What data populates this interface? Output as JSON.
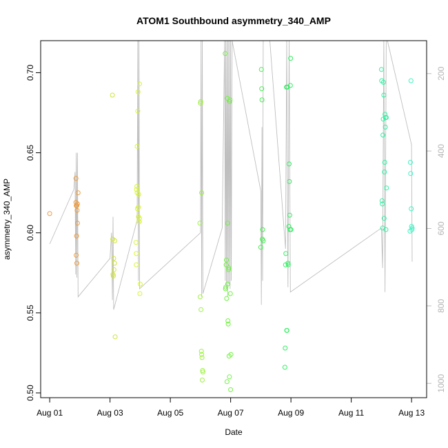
{
  "chart_data": {
    "type": "scatter",
    "title": "ATOM1 Southbound asymmetry_340_AMP",
    "xlabel": "Date",
    "ylabel": "asymmetry_340_AMP",
    "x_tick_labels": [
      "Aug 01",
      "Aug 03",
      "Aug 05",
      "Aug 07",
      "Aug 09",
      "Aug 11",
      "Aug 13"
    ],
    "x_tick_days": [
      1,
      3,
      5,
      7,
      9,
      11,
      13
    ],
    "xlim_days": [
      0.7,
      13.5
    ],
    "ylim": [
      0.497,
      0.72
    ],
    "y_ticks": [
      0.5,
      0.55,
      0.6,
      0.65,
      0.7
    ],
    "y_tick_labels": [
      "0.50",
      "0.55",
      "0.60",
      "0.65",
      "0.70"
    ],
    "right_axis": {
      "ticks": [
        200,
        400,
        600,
        800,
        1000
      ],
      "tick_labels": [
        "200",
        "400",
        "600",
        "800",
        "1000"
      ],
      "range": [
        115,
        1037
      ],
      "reversed": true,
      "color": "#bebebe"
    },
    "series": [
      {
        "color": "#ef9a3b",
        "x_days": [
          1.0,
          1.87,
          1.87,
          1.88,
          1.88,
          1.89,
          1.9,
          1.9,
          1.91,
          1.92,
          1.92,
          1.94
        ],
        "y": [
          0.612,
          0.634,
          0.619,
          0.617,
          0.586,
          0.598,
          0.581,
          0.617,
          0.614,
          0.606,
          0.618,
          0.625
        ]
      },
      {
        "color": "#cfe33a",
        "x_days": [
          3.08,
          3.09,
          3.1,
          3.11,
          3.12,
          3.13,
          3.15,
          3.16,
          3.17
        ],
        "y": [
          0.686,
          0.596,
          0.574,
          0.573,
          0.584,
          0.577,
          0.581,
          0.595,
          0.535
        ]
      },
      {
        "color": "#d8f530",
        "x_days": [
          3.86,
          3.87,
          3.87,
          3.88,
          3.89,
          3.9,
          3.9,
          3.91,
          3.92,
          3.93,
          3.94,
          3.94,
          3.95,
          3.96,
          3.97,
          3.98,
          3.98,
          3.99,
          4.0
        ],
        "y": [
          0.594,
          0.58,
          0.587,
          0.627,
          0.629,
          0.625,
          0.654,
          0.615,
          0.676,
          0.688,
          0.616,
          0.61,
          0.624,
          0.607,
          0.607,
          0.609,
          0.693,
          0.562,
          0.568
        ]
      },
      {
        "color": "#9cf23d",
        "x_days": [
          5.98,
          5.99,
          6.0,
          6.01,
          6.02,
          6.03,
          6.04,
          6.04,
          6.05,
          6.06,
          6.07,
          6.08
        ],
        "y": [
          0.606,
          0.56,
          0.681,
          0.682,
          0.552,
          0.526,
          0.524,
          0.625,
          0.522,
          0.508,
          0.514,
          0.513
        ]
      },
      {
        "color": "#6ff240",
        "x_days": [
          6.82,
          6.83,
          6.84,
          6.85,
          6.86,
          6.87,
          6.88,
          6.89,
          6.9,
          6.9,
          6.91,
          6.92,
          6.93,
          6.94,
          6.95,
          6.96,
          6.97,
          6.98,
          6.99,
          7.0,
          7.01
        ],
        "y": [
          0.712,
          0.565,
          0.566,
          0.58,
          0.583,
          0.559,
          0.507,
          0.684,
          0.568,
          0.606,
          0.545,
          0.543,
          0.577,
          0.578,
          0.523,
          0.51,
          0.682,
          0.683,
          0.562,
          0.502,
          0.524
        ]
      },
      {
        "color": "#3ff04a",
        "x_days": [
          8.0,
          8.02,
          8.03,
          8.04,
          8.05,
          8.06,
          8.08
        ],
        "y": [
          0.591,
          0.702,
          0.69,
          0.683,
          0.596,
          0.602,
          0.595
        ]
      },
      {
        "color": "#2fef5f",
        "x_days": [
          8.8,
          8.81,
          8.82,
          8.83,
          8.85,
          8.86,
          8.87,
          8.88,
          8.9,
          8.91,
          8.93,
          8.94,
          8.95,
          8.96,
          8.97,
          8.98,
          8.99,
          9.0
        ],
        "y": [
          0.516,
          0.528,
          0.58,
          0.587,
          0.691,
          0.539,
          0.539,
          0.691,
          0.581,
          0.58,
          0.604,
          0.643,
          0.632,
          0.611,
          0.602,
          0.692,
          0.709,
          0.602
        ]
      },
      {
        "color": "#2ff0a0",
        "x_days": [
          12.0,
          12.01,
          12.02,
          12.03,
          12.04,
          12.05,
          12.06,
          12.07,
          12.08,
          12.09,
          12.1,
          12.11,
          12.12,
          12.13,
          12.14,
          12.15,
          12.16,
          12.17
        ],
        "y": [
          0.702,
          0.695,
          0.62,
          0.618,
          0.603,
          0.661,
          0.671,
          0.694,
          0.686,
          0.609,
          0.638,
          0.644,
          0.674,
          0.666,
          0.672,
          0.602,
          0.672,
          0.628
        ]
      },
      {
        "color": "#3ef2c2",
        "x_days": [
          12.95,
          12.96,
          12.97,
          12.98,
          12.99,
          13.0,
          13.01,
          13.02
        ],
        "y": [
          0.601,
          0.644,
          0.637,
          0.695,
          0.615,
          0.604,
          0.602,
          0.603
        ]
      }
    ],
    "line_series": {
      "color": "#bebebe",
      "x_days": [
        1.0,
        1.8,
        1.84,
        1.86,
        1.88,
        1.9,
        1.92,
        1.94,
        3.0,
        3.05,
        3.08,
        3.1,
        3.12,
        3.9,
        3.92,
        3.94,
        3.96,
        3.98,
        6.0,
        6.02,
        6.04,
        6.06,
        6.08,
        6.72,
        6.8,
        6.82,
        6.84,
        6.86,
        6.88,
        6.9,
        6.92,
        6.94,
        6.96,
        6.98,
        7.0,
        7.02,
        7.05,
        8.0,
        8.02,
        8.04,
        8.06,
        8.08,
        8.3,
        8.82,
        8.86,
        8.9,
        8.94,
        8.98,
        12.0,
        12.04,
        12.08,
        12.12,
        12.16,
        12.2,
        13.0,
        13.02
      ],
      "y": [
        0.593,
        0.627,
        0.638,
        0.574,
        0.65,
        0.572,
        0.65,
        0.56,
        0.584,
        0.6,
        0.558,
        0.61,
        0.552,
        0.608,
        0.72,
        0.57,
        0.72,
        0.565,
        0.6,
        0.72,
        0.56,
        0.72,
        0.562,
        0.603,
        0.72,
        0.57,
        0.72,
        0.565,
        0.72,
        0.56,
        0.72,
        0.568,
        0.72,
        0.565,
        0.72,
        0.57,
        0.72,
        0.626,
        0.555,
        0.666,
        0.57,
        0.72,
        0.72,
        0.59,
        0.72,
        0.566,
        0.72,
        0.563,
        0.603,
        0.578,
        0.72,
        0.563,
        0.72,
        0.72,
        0.655,
        0.582
      ]
    },
    "grid": false,
    "legend": "none"
  }
}
